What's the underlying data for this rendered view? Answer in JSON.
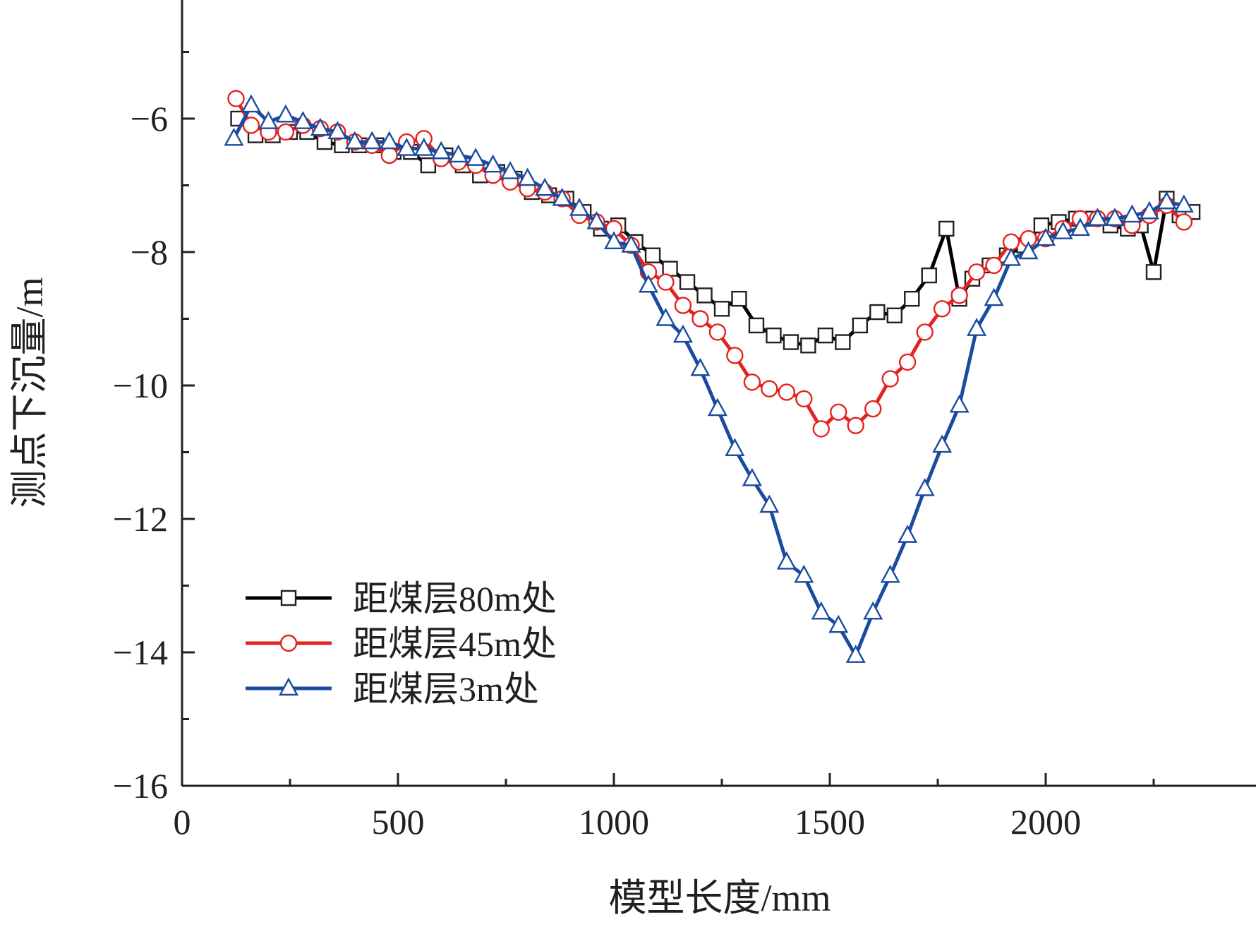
{
  "chart_data": {
    "type": "line",
    "xlabel": "模型长度/mm",
    "ylabel": "测点下沉量/m",
    "xlim": [
      0,
      2500
    ],
    "ylim": [
      -16,
      -4
    ],
    "x_ticks": [
      0,
      500,
      1000,
      1500,
      2000
    ],
    "x_tick_labels": [
      "0",
      "500",
      "1000",
      "1500",
      "2000"
    ],
    "y_ticks": [
      -6,
      -8,
      -10,
      -12,
      -14,
      -16
    ],
    "y_tick_labels": [
      "−6",
      "−8",
      "−10",
      "−12",
      "−14",
      "−16"
    ],
    "legend_position": "bottom-left",
    "grid": false,
    "series": [
      {
        "name": "距煤层80m处",
        "color": "#000000",
        "marker": "square",
        "x": [
          130,
          170,
          210,
          250,
          290,
          330,
          370,
          410,
          450,
          490,
          530,
          570,
          610,
          650,
          690,
          730,
          770,
          810,
          850,
          890,
          930,
          970,
          1010,
          1050,
          1090,
          1130,
          1170,
          1210,
          1250,
          1290,
          1330,
          1370,
          1410,
          1450,
          1490,
          1530,
          1570,
          1610,
          1650,
          1690,
          1730,
          1770,
          1800,
          1830,
          1870,
          1910,
          1950,
          1990,
          2030,
          2070,
          2110,
          2150,
          2190,
          2220,
          2250,
          2280,
          2310,
          2340
        ],
        "y": [
          -6.0,
          -6.25,
          -6.25,
          -6.2,
          -6.2,
          -6.35,
          -6.4,
          -6.4,
          -6.4,
          -6.5,
          -6.5,
          -6.7,
          -6.55,
          -6.7,
          -6.85,
          -6.8,
          -6.9,
          -7.1,
          -7.15,
          -7.2,
          -7.4,
          -7.65,
          -7.6,
          -7.85,
          -8.05,
          -8.25,
          -8.45,
          -8.65,
          -8.85,
          -8.7,
          -9.1,
          -9.25,
          -9.35,
          -9.4,
          -9.25,
          -9.35,
          -9.1,
          -8.9,
          -8.95,
          -8.7,
          -8.35,
          -7.65,
          -8.7,
          -8.4,
          -8.2,
          -8.05,
          -7.9,
          -7.6,
          -7.55,
          -7.5,
          -7.5,
          -7.6,
          -7.65,
          -7.6,
          -8.3,
          -7.2,
          -7.45,
          -7.4
        ]
      },
      {
        "name": "距煤层45m处",
        "color": "#e3231f",
        "marker": "circle",
        "x": [
          125,
          160,
          200,
          240,
          280,
          320,
          360,
          400,
          440,
          480,
          520,
          560,
          600,
          640,
          680,
          720,
          760,
          800,
          840,
          880,
          920,
          960,
          1000,
          1040,
          1080,
          1120,
          1160,
          1200,
          1240,
          1280,
          1320,
          1360,
          1400,
          1440,
          1480,
          1520,
          1560,
          1600,
          1640,
          1680,
          1720,
          1760,
          1800,
          1840,
          1880,
          1920,
          1960,
          2000,
          2040,
          2080,
          2120,
          2160,
          2200,
          2240,
          2280,
          2320
        ],
        "y": [
          -5.7,
          -6.1,
          -6.2,
          -6.2,
          -6.1,
          -6.15,
          -6.2,
          -6.35,
          -6.4,
          -6.55,
          -6.35,
          -6.3,
          -6.6,
          -6.65,
          -6.7,
          -6.85,
          -6.95,
          -7.05,
          -7.1,
          -7.2,
          -7.45,
          -7.55,
          -7.65,
          -7.9,
          -8.3,
          -8.45,
          -8.8,
          -9.0,
          -9.2,
          -9.55,
          -9.95,
          -10.05,
          -10.1,
          -10.2,
          -10.65,
          -10.4,
          -10.6,
          -10.35,
          -9.9,
          -9.65,
          -9.2,
          -8.85,
          -8.65,
          -8.3,
          -8.2,
          -7.85,
          -7.8,
          -7.8,
          -7.65,
          -7.5,
          -7.5,
          -7.5,
          -7.6,
          -7.45,
          -7.3,
          -7.55
        ]
      },
      {
        "name": "距煤层3m处",
        "color": "#1a4b9e",
        "marker": "triangle",
        "x": [
          120,
          160,
          200,
          240,
          280,
          320,
          360,
          400,
          440,
          480,
          520,
          560,
          600,
          640,
          680,
          720,
          760,
          800,
          840,
          880,
          920,
          960,
          1000,
          1040,
          1080,
          1120,
          1160,
          1200,
          1240,
          1280,
          1320,
          1360,
          1400,
          1440,
          1480,
          1520,
          1560,
          1600,
          1640,
          1680,
          1720,
          1760,
          1800,
          1840,
          1880,
          1920,
          1960,
          2000,
          2040,
          2080,
          2120,
          2160,
          2200,
          2240,
          2280,
          2320
        ],
        "y": [
          -6.3,
          -5.8,
          -6.05,
          -5.95,
          -6.05,
          -6.15,
          -6.2,
          -6.35,
          -6.35,
          -6.35,
          -6.45,
          -6.45,
          -6.5,
          -6.55,
          -6.6,
          -6.7,
          -6.8,
          -6.9,
          -7.05,
          -7.2,
          -7.35,
          -7.55,
          -7.85,
          -7.9,
          -8.5,
          -9.0,
          -9.25,
          -9.75,
          -10.35,
          -10.95,
          -11.4,
          -11.8,
          -12.65,
          -12.85,
          -13.4,
          -13.6,
          -14.05,
          -13.4,
          -12.85,
          -12.25,
          -11.55,
          -10.9,
          -10.3,
          -9.15,
          -8.7,
          -8.1,
          -8.0,
          -7.8,
          -7.7,
          -7.65,
          -7.5,
          -7.5,
          -7.45,
          -7.4,
          -7.25,
          -7.3
        ]
      }
    ]
  }
}
